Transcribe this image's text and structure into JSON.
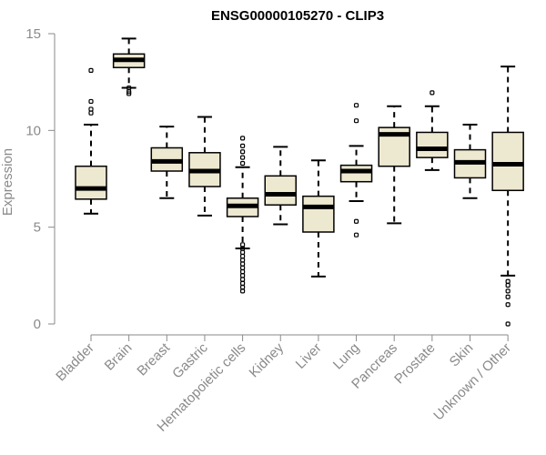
{
  "chart_data": {
    "type": "boxplot",
    "title": "ENSG00000105270 - CLIP3",
    "xlabel": "",
    "ylabel": "Expression",
    "ylim": [
      0,
      15
    ],
    "yticks": [
      0,
      5,
      10,
      15
    ],
    "box_fill": "#EDE8D0",
    "categories": [
      "Bladder",
      "Brain",
      "Breast",
      "Gastric",
      "Hematopoietic cells",
      "Kidney",
      "Liver",
      "Lung",
      "Pancreas",
      "Prostate",
      "Skin",
      "Unknown / Other"
    ],
    "boxes": [
      {
        "category": "Bladder",
        "whisker_low": 5.7,
        "q1": 6.45,
        "median": 7.0,
        "q3": 8.15,
        "whisker_high": 10.3,
        "outliers": [
          10.9,
          11.1,
          11.5,
          13.1
        ]
      },
      {
        "category": "Brain",
        "whisker_low": 12.2,
        "q1": 13.25,
        "median": 13.65,
        "q3": 13.95,
        "whisker_high": 14.75,
        "outliers": [
          11.9,
          12.0,
          12.2
        ]
      },
      {
        "category": "Breast",
        "whisker_low": 6.5,
        "q1": 7.9,
        "median": 8.4,
        "q3": 9.1,
        "whisker_high": 10.2,
        "outliers": []
      },
      {
        "category": "Gastric",
        "whisker_low": 5.6,
        "q1": 7.1,
        "median": 7.9,
        "q3": 8.85,
        "whisker_high": 10.7,
        "outliers": []
      },
      {
        "category": "Hematopoietic cells",
        "whisker_low": 3.9,
        "q1": 5.55,
        "median": 6.1,
        "q3": 6.5,
        "whisker_high": 8.1,
        "outliers": [
          1.7,
          1.9,
          2.1,
          2.3,
          2.5,
          2.7,
          2.9,
          3.1,
          3.3,
          3.5,
          3.7,
          3.9,
          4.1,
          8.3,
          8.6,
          8.9,
          9.2,
          9.6
        ]
      },
      {
        "category": "Kidney",
        "whisker_low": 5.15,
        "q1": 6.15,
        "median": 6.7,
        "q3": 7.65,
        "whisker_high": 9.15,
        "outliers": []
      },
      {
        "category": "Liver",
        "whisker_low": 2.45,
        "q1": 4.75,
        "median": 6.05,
        "q3": 6.6,
        "whisker_high": 8.45,
        "outliers": []
      },
      {
        "category": "Lung",
        "whisker_low": 6.35,
        "q1": 7.35,
        "median": 7.9,
        "q3": 8.2,
        "whisker_high": 9.2,
        "outliers": [
          4.6,
          5.3,
          10.5,
          11.3
        ]
      },
      {
        "category": "Pancreas",
        "whisker_low": 5.2,
        "q1": 8.15,
        "median": 9.8,
        "q3": 10.15,
        "whisker_high": 11.25,
        "outliers": []
      },
      {
        "category": "Prostate",
        "whisker_low": 7.95,
        "q1": 8.6,
        "median": 9.05,
        "q3": 9.9,
        "whisker_high": 11.25,
        "outliers": [
          11.95
        ]
      },
      {
        "category": "Skin",
        "whisker_low": 6.5,
        "q1": 7.55,
        "median": 8.35,
        "q3": 9.0,
        "whisker_high": 10.3,
        "outliers": []
      },
      {
        "category": "Unknown / Other",
        "whisker_low": 2.5,
        "q1": 6.9,
        "median": 8.25,
        "q3": 9.9,
        "whisker_high": 13.3,
        "outliers": [
          0.0,
          1.0,
          1.4,
          1.7,
          2.0,
          2.2
        ]
      }
    ]
  }
}
